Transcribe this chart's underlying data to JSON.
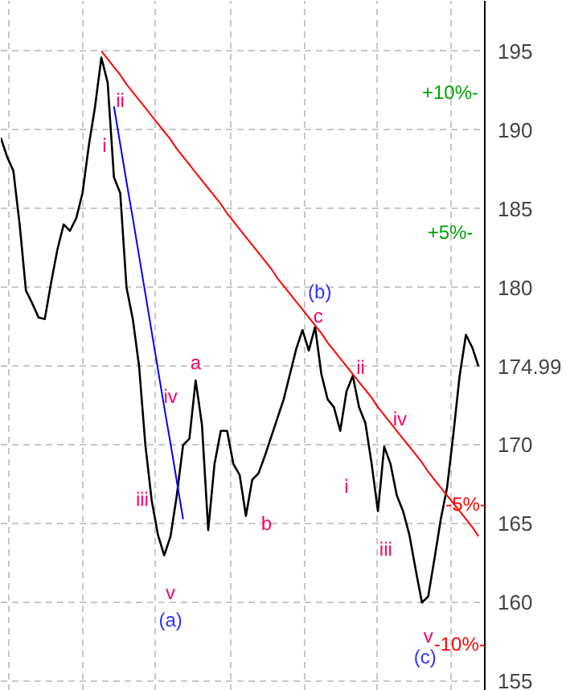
{
  "chart_data": {
    "type": "line",
    "categories": [
      null,
      null,
      null,
      null,
      null,
      null,
      null,
      null,
      null,
      null,
      null,
      null,
      null,
      null,
      null,
      null,
      null,
      null,
      null,
      null,
      null,
      null,
      null,
      null,
      null,
      null,
      null,
      null,
      null,
      null,
      null,
      null,
      null,
      null,
      null,
      null,
      null,
      null,
      null,
      null,
      null,
      null,
      null,
      null,
      null,
      null,
      null,
      null,
      null,
      null,
      null,
      null,
      null,
      null,
      null,
      null,
      null,
      null,
      null,
      null,
      null,
      null,
      null,
      null,
      null,
      null,
      null,
      null,
      null,
      null,
      null,
      null,
      null,
      null,
      null,
      null,
      null
    ],
    "ylim": [
      154.4,
      198.2
    ],
    "yticks": [
      155,
      160,
      165,
      170,
      {
        "value": 174.99,
        "label": "174.99"
      },
      180,
      185,
      190,
      195
    ],
    "tick_labels": "y",
    "grid": true,
    "marker": "none",
    "line_style": "solid",
    "series": [
      {
        "color": "#000000",
        "values": [
          189.5,
          188.3,
          187.4,
          184.0,
          179.8,
          179.0,
          178.1,
          178.0,
          180.3,
          182.4,
          184.0,
          183.6,
          184.4,
          186.0,
          189.0,
          191.5,
          194.6,
          193.0,
          187.0,
          186.0,
          180.0,
          178.0,
          175.0,
          170.0,
          166.5,
          164.3,
          163.0,
          164.2,
          166.8,
          170.0,
          170.4,
          174.1,
          171.3,
          164.6,
          168.8,
          170.9,
          170.9,
          168.8,
          168.1,
          165.5,
          167.8,
          168.2,
          169.3,
          170.5,
          171.7,
          172.9,
          174.5,
          176.1,
          177.3,
          176.0,
          177.5,
          174.5,
          172.9,
          172.4,
          170.9,
          173.4,
          174.4,
          172.4,
          171.4,
          168.8,
          165.8,
          169.9,
          168.8,
          166.8,
          165.8,
          164.3,
          162.1,
          160.0,
          160.4,
          162.8,
          165.3,
          167.3,
          170.7,
          174.4,
          177.0,
          176.2,
          174.99
        ]
      },
      {
        "color": "#ff0000",
        "values": [
          null,
          null,
          null,
          null,
          null,
          null,
          null,
          null,
          null,
          null,
          null,
          null,
          null,
          null,
          null,
          null,
          195.0,
          194.5,
          194.0,
          193.5,
          192.9,
          192.4,
          191.9,
          191.4,
          190.9,
          190.4,
          189.9,
          189.4,
          188.8,
          188.3,
          187.8,
          187.3,
          186.8,
          186.3,
          185.8,
          185.3,
          184.7,
          184.2,
          183.7,
          183.2,
          182.7,
          182.2,
          181.7,
          181.2,
          180.6,
          180.1,
          179.6,
          179.1,
          178.6,
          178.1,
          177.6,
          177.1,
          176.5,
          176.0,
          175.5,
          175.0,
          174.5,
          174.0,
          173.5,
          173.0,
          172.4,
          171.9,
          171.4,
          170.9,
          170.4,
          169.9,
          169.4,
          168.9,
          168.3,
          167.8,
          167.3,
          166.8,
          166.3,
          165.8,
          165.3,
          164.8,
          164.2
        ]
      },
      {
        "color": "#0000ff",
        "values": [
          null,
          null,
          null,
          null,
          null,
          null,
          null,
          null,
          null,
          null,
          null,
          null,
          null,
          null,
          null,
          null,
          null,
          null,
          191.5,
          189.1,
          186.7,
          184.4,
          182.0,
          179.6,
          177.2,
          174.8,
          172.4,
          170.1,
          167.7,
          165.3,
          null,
          null,
          null,
          null,
          null,
          null,
          null,
          null,
          null,
          null,
          null,
          null,
          null,
          null,
          null,
          null,
          null,
          null,
          null,
          null,
          null,
          null,
          null,
          null,
          null,
          null,
          null,
          null,
          null,
          null,
          null,
          null,
          null,
          null,
          null,
          null,
          null,
          null,
          null,
          null,
          null,
          null,
          null,
          null,
          null,
          null,
          null
        ]
      }
    ],
    "annotations": [
      "+10%-",
      "+5%-",
      "-5%-",
      "-10%-",
      "i",
      "ii",
      "iii",
      "iv",
      "v",
      "(a)",
      "a",
      "b",
      "(b)",
      "c",
      "ii",
      "i",
      "iv",
      "iii",
      "v",
      "(c)"
    ]
  }
}
